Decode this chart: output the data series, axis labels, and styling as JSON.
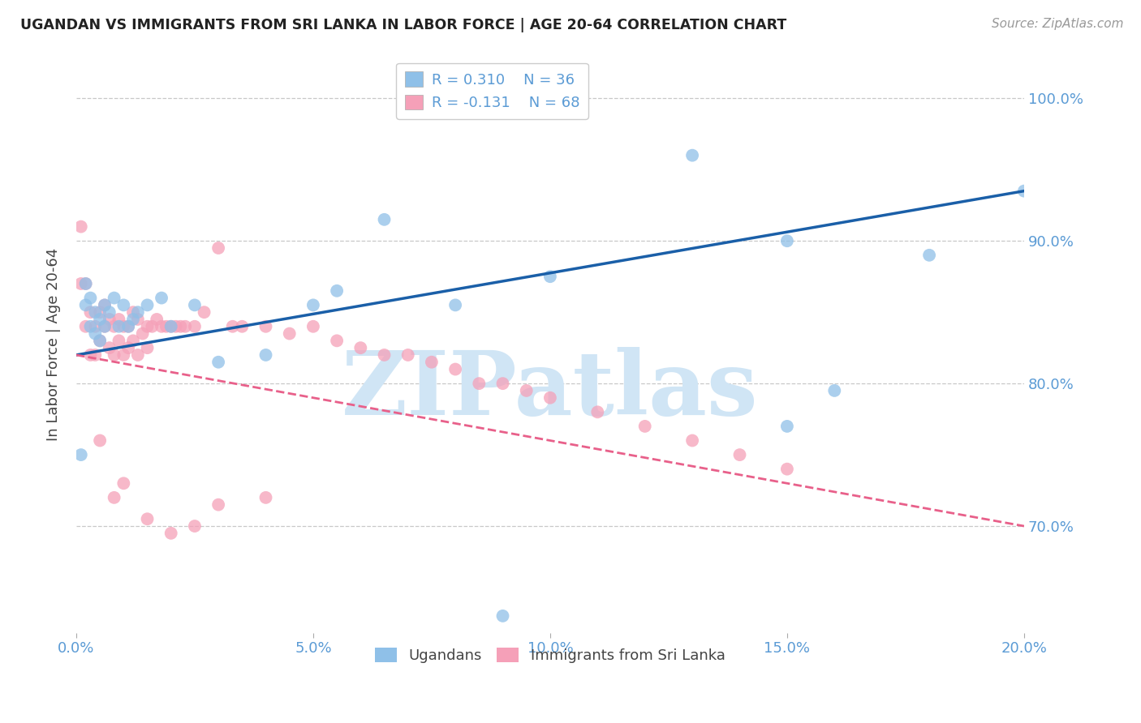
{
  "title": "UGANDAN VS IMMIGRANTS FROM SRI LANKA IN LABOR FORCE | AGE 20-64 CORRELATION CHART",
  "source": "Source: ZipAtlas.com",
  "ylabel": "In Labor Force | Age 20-64",
  "xlim": [
    0.0,
    0.2
  ],
  "ylim": [
    0.625,
    1.03
  ],
  "yticks": [
    0.7,
    0.8,
    0.9,
    1.0
  ],
  "ytick_labels": [
    "70.0%",
    "80.0%",
    "90.0%",
    "100.0%"
  ],
  "xticks": [
    0.0,
    0.05,
    0.1,
    0.15,
    0.2
  ],
  "xtick_labels": [
    "0.0%",
    "5.0%",
    "10.0%",
    "15.0%",
    "20.0%"
  ],
  "background_color": "#ffffff",
  "grid_color": "#c8c8c8",
  "title_color": "#222222",
  "axis_color": "#5b9bd5",
  "watermark": "ZIPatlas",
  "watermark_color": "#d0e5f5",
  "legend_r1": "R = 0.310",
  "legend_n1": "N = 36",
  "legend_r2": "R = -0.131",
  "legend_n2": "N = 68",
  "legend_label1": "Ugandans",
  "legend_label2": "Immigrants from Sri Lanka",
  "blue_color": "#8fc0e8",
  "pink_color": "#f5a0b8",
  "blue_line_color": "#1a5fa8",
  "pink_line_color": "#e8608a",
  "ugandan_x": [
    0.001,
    0.002,
    0.002,
    0.003,
    0.003,
    0.004,
    0.004,
    0.005,
    0.005,
    0.006,
    0.006,
    0.007,
    0.008,
    0.009,
    0.01,
    0.011,
    0.012,
    0.013,
    0.015,
    0.018,
    0.02,
    0.025,
    0.03,
    0.04,
    0.05,
    0.055,
    0.065,
    0.08,
    0.1,
    0.13,
    0.15,
    0.16,
    0.18,
    0.2,
    0.15,
    0.09
  ],
  "ugandan_y": [
    0.75,
    0.87,
    0.855,
    0.86,
    0.84,
    0.85,
    0.835,
    0.845,
    0.83,
    0.855,
    0.84,
    0.85,
    0.86,
    0.84,
    0.855,
    0.84,
    0.845,
    0.85,
    0.855,
    0.86,
    0.84,
    0.855,
    0.815,
    0.82,
    0.855,
    0.865,
    0.915,
    0.855,
    0.875,
    0.96,
    0.9,
    0.795,
    0.89,
    0.935,
    0.77,
    0.637
  ],
  "srilanka_x": [
    0.001,
    0.001,
    0.002,
    0.002,
    0.003,
    0.003,
    0.004,
    0.004,
    0.005,
    0.005,
    0.006,
    0.006,
    0.007,
    0.007,
    0.008,
    0.008,
    0.009,
    0.009,
    0.01,
    0.01,
    0.011,
    0.011,
    0.012,
    0.012,
    0.013,
    0.013,
    0.014,
    0.015,
    0.015,
    0.016,
    0.017,
    0.018,
    0.019,
    0.02,
    0.021,
    0.022,
    0.023,
    0.025,
    0.027,
    0.03,
    0.033,
    0.035,
    0.04,
    0.045,
    0.05,
    0.055,
    0.06,
    0.065,
    0.07,
    0.075,
    0.08,
    0.085,
    0.09,
    0.095,
    0.1,
    0.11,
    0.12,
    0.13,
    0.14,
    0.15,
    0.005,
    0.008,
    0.01,
    0.015,
    0.02,
    0.025,
    0.03,
    0.04
  ],
  "srilanka_y": [
    0.91,
    0.87,
    0.87,
    0.84,
    0.85,
    0.82,
    0.84,
    0.82,
    0.85,
    0.83,
    0.855,
    0.84,
    0.845,
    0.825,
    0.84,
    0.82,
    0.845,
    0.83,
    0.84,
    0.82,
    0.84,
    0.825,
    0.85,
    0.83,
    0.845,
    0.82,
    0.835,
    0.84,
    0.825,
    0.84,
    0.845,
    0.84,
    0.84,
    0.84,
    0.84,
    0.84,
    0.84,
    0.84,
    0.85,
    0.895,
    0.84,
    0.84,
    0.84,
    0.835,
    0.84,
    0.83,
    0.825,
    0.82,
    0.82,
    0.815,
    0.81,
    0.8,
    0.8,
    0.795,
    0.79,
    0.78,
    0.77,
    0.76,
    0.75,
    0.74,
    0.76,
    0.72,
    0.73,
    0.705,
    0.695,
    0.7,
    0.715,
    0.72
  ]
}
